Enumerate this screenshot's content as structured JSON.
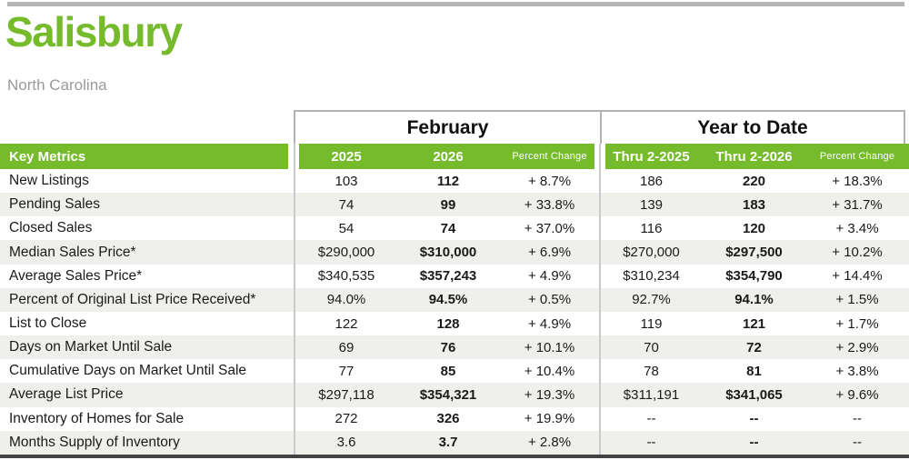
{
  "header": {
    "city": "Salisbury",
    "state": "North Carolina"
  },
  "table": {
    "group_headers": [
      {
        "label": "February"
      },
      {
        "label": "Year to Date"
      }
    ],
    "columns": {
      "key_metrics": "Key Metrics",
      "feb_2025": "2025",
      "feb_2026": "2026",
      "feb_pct": "Percent Change",
      "ytd_2025": "Thru 2-2025",
      "ytd_2026": "Thru 2-2026",
      "ytd_pct": "Percent Change"
    },
    "rows": [
      {
        "metric": "New Listings",
        "feb_2025": "103",
        "feb_2026": "112",
        "feb_pct": "+ 8.7%",
        "ytd_2025": "186",
        "ytd_2026": "220",
        "ytd_pct": "+ 18.3%"
      },
      {
        "metric": "Pending Sales",
        "feb_2025": "74",
        "feb_2026": "99",
        "feb_pct": "+ 33.8%",
        "ytd_2025": "139",
        "ytd_2026": "183",
        "ytd_pct": "+ 31.7%"
      },
      {
        "metric": "Closed Sales",
        "feb_2025": "54",
        "feb_2026": "74",
        "feb_pct": "+ 37.0%",
        "ytd_2025": "116",
        "ytd_2026": "120",
        "ytd_pct": "+ 3.4%"
      },
      {
        "metric": "Median Sales Price*",
        "feb_2025": "$290,000",
        "feb_2026": "$310,000",
        "feb_pct": "+ 6.9%",
        "ytd_2025": "$270,000",
        "ytd_2026": "$297,500",
        "ytd_pct": "+ 10.2%"
      },
      {
        "metric": "Average Sales Price*",
        "feb_2025": "$340,535",
        "feb_2026": "$357,243",
        "feb_pct": "+ 4.9%",
        "ytd_2025": "$310,234",
        "ytd_2026": "$354,790",
        "ytd_pct": "+ 14.4%"
      },
      {
        "metric": "Percent of Original List Price Received*",
        "feb_2025": "94.0%",
        "feb_2026": "94.5%",
        "feb_pct": "+ 0.5%",
        "ytd_2025": "92.7%",
        "ytd_2026": "94.1%",
        "ytd_pct": "+ 1.5%"
      },
      {
        "metric": "List to Close",
        "feb_2025": "122",
        "feb_2026": "128",
        "feb_pct": "+ 4.9%",
        "ytd_2025": "119",
        "ytd_2026": "121",
        "ytd_pct": "+ 1.7%"
      },
      {
        "metric": "Days on Market Until Sale",
        "feb_2025": "69",
        "feb_2026": "76",
        "feb_pct": "+ 10.1%",
        "ytd_2025": "70",
        "ytd_2026": "72",
        "ytd_pct": "+ 2.9%"
      },
      {
        "metric": "Cumulative Days on Market Until Sale",
        "feb_2025": "77",
        "feb_2026": "85",
        "feb_pct": "+ 10.4%",
        "ytd_2025": "78",
        "ytd_2026": "81",
        "ytd_pct": "+ 3.8%"
      },
      {
        "metric": "Average List Price",
        "feb_2025": "$297,118",
        "feb_2026": "$354,321",
        "feb_pct": "+ 19.3%",
        "ytd_2025": "$311,191",
        "ytd_2026": "$341,065",
        "ytd_pct": "+ 9.6%"
      },
      {
        "metric": "Inventory of Homes for Sale",
        "feb_2025": "272",
        "feb_2026": "326",
        "feb_pct": "+ 19.9%",
        "ytd_2025": "--",
        "ytd_2026": "--",
        "ytd_pct": "--"
      },
      {
        "metric": "Months Supply of Inventory",
        "feb_2025": "3.6",
        "feb_2026": "3.7",
        "feb_pct": "+ 2.8%",
        "ytd_2025": "--",
        "ytd_2026": "--",
        "ytd_pct": "--"
      }
    ]
  },
  "colors": {
    "accent_green": "#76bb2b",
    "stripe_gray": "#efefec",
    "divider_gray": "#c9c9c9",
    "border_gray": "#b3b3b3",
    "top_rule_gray": "#b5b5b5",
    "bottom_rule_dark": "#434343",
    "subtitle_gray": "#9a9a9a"
  }
}
